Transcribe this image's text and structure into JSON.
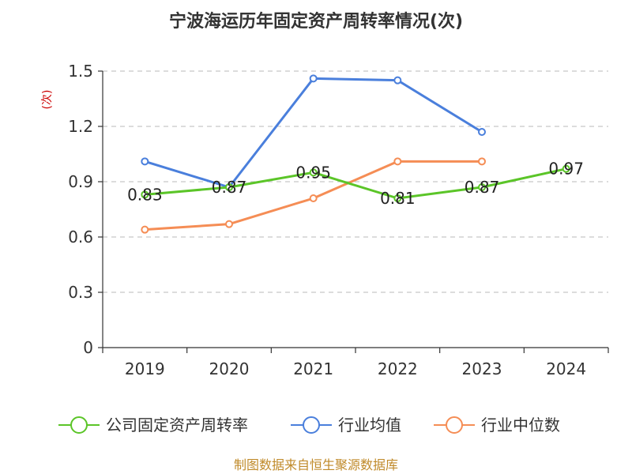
{
  "chart_data": {
    "type": "line",
    "title": "宁波海运历年固定资产周转率情况(次)",
    "ylabel": "(次)",
    "xlabel": "",
    "categories": [
      "2019",
      "2020",
      "2021",
      "2022",
      "2023",
      "2024"
    ],
    "ylim": [
      0,
      1.5
    ],
    "yticks": [
      0,
      0.3,
      0.6,
      0.9,
      1.2,
      1.5
    ],
    "ytick_labels": [
      "0",
      "0.3",
      "0.6",
      "0.9",
      "1.2",
      "1.5"
    ],
    "grid": true,
    "legend_position": "bottom",
    "series": [
      {
        "name": "公司固定资产周转率",
        "color": "#5bc528",
        "values": [
          0.83,
          0.87,
          0.95,
          0.81,
          0.87,
          0.97
        ],
        "labels": [
          "0.83",
          "0.87",
          "0.95",
          "0.81",
          "0.87",
          "0.97"
        ]
      },
      {
        "name": "行业均值",
        "color": "#4a7fdc",
        "values": [
          1.01,
          0.87,
          1.46,
          1.45,
          1.17,
          null
        ]
      },
      {
        "name": "行业中位数",
        "color": "#f58d55",
        "values": [
          0.64,
          0.67,
          0.81,
          1.01,
          1.01,
          null
        ]
      }
    ],
    "source": "制图数据来自恒生聚源数据库"
  }
}
